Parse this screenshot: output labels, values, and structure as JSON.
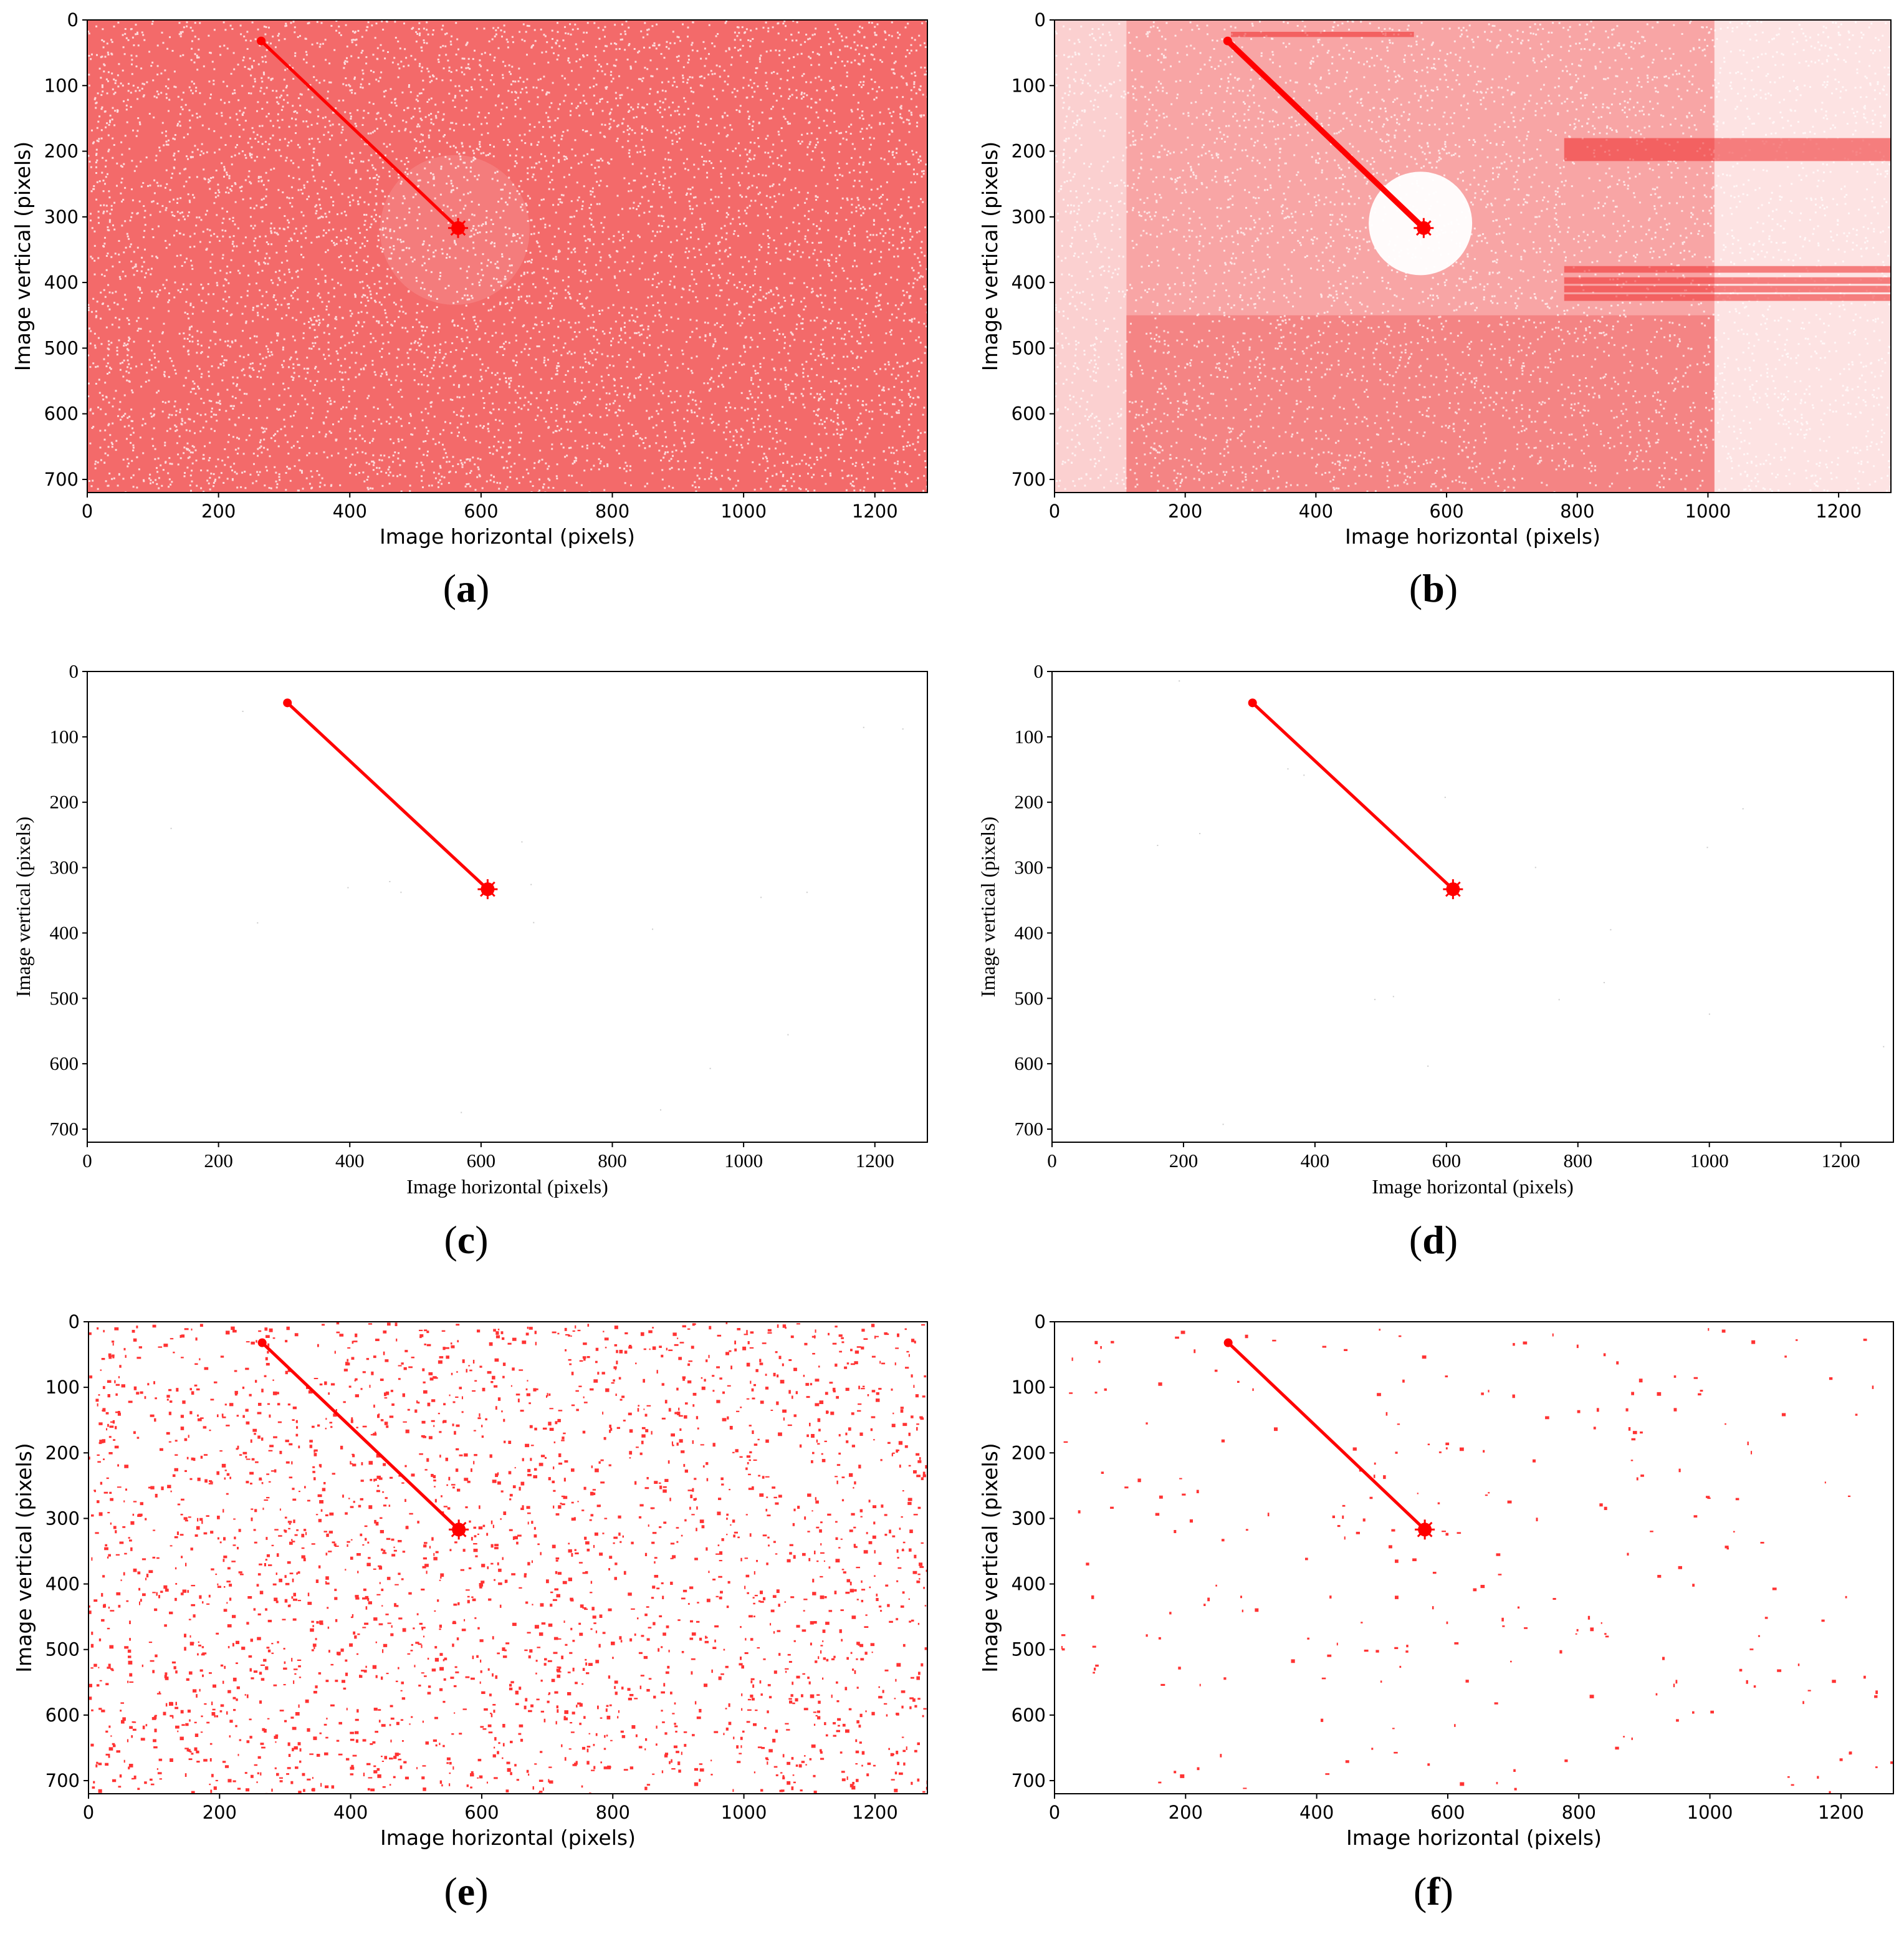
{
  "colors": {
    "accent": "#ff0000",
    "background": "#ffffff",
    "axis": "#000000"
  },
  "chart_data": [
    {
      "id": "a",
      "caption_open": "(",
      "caption_letter": "a",
      "caption_close": ")",
      "type": "scatter",
      "xlabel": "Image horizontal (pixels)",
      "ylabel": "Image vertical (pixels)",
      "xlim": [
        0,
        1280
      ],
      "ylim": [
        720,
        0
      ],
      "xticks": [
        "0",
        "200",
        "400",
        "600",
        "800",
        "1000",
        "1200"
      ],
      "yticks": [
        "0",
        "100",
        "200",
        "300",
        "400",
        "500",
        "600",
        "700"
      ],
      "grid": false,
      "font": "sans",
      "noise": "dense",
      "line": {
        "x": [
          265,
          565
        ],
        "y": [
          32,
          317
        ]
      }
    },
    {
      "id": "b",
      "caption_open": "(",
      "caption_letter": "b",
      "caption_close": ")",
      "type": "scatter",
      "xlabel": "Image horizontal (pixels)",
      "ylabel": "Image vertical (pixels)",
      "xlim": [
        0,
        1280
      ],
      "ylim": [
        720,
        0
      ],
      "xticks": [
        "0",
        "200",
        "400",
        "600",
        "800",
        "1000",
        "1200"
      ],
      "yticks": [
        "0",
        "100",
        "200",
        "300",
        "400",
        "500",
        "600",
        "700"
      ],
      "grid": false,
      "font": "sans",
      "noise": "structured",
      "line": {
        "x": [
          265,
          565
        ],
        "y": [
          32,
          317
        ]
      }
    },
    {
      "id": "c",
      "caption_open": "(",
      "caption_letter": "c",
      "caption_close": ")",
      "type": "scatter",
      "xlabel": "Image horizontal (pixels)",
      "ylabel": "Image vertical (pixels)",
      "xlim": [
        0,
        1280
      ],
      "ylim": [
        720,
        0
      ],
      "xticks": [
        "0",
        "200",
        "400",
        "600",
        "800",
        "1000",
        "1200"
      ],
      "yticks": [
        "0",
        "100",
        "200",
        "300",
        "400",
        "500",
        "600",
        "700"
      ],
      "grid": false,
      "font": "serif",
      "noise": "none",
      "line": {
        "x": [
          305,
          610
        ],
        "y": [
          48,
          333
        ]
      }
    },
    {
      "id": "d",
      "caption_open": "(",
      "caption_letter": "d",
      "caption_close": ")",
      "type": "scatter",
      "xlabel": "Image horizontal (pixels)",
      "ylabel": "Image vertical (pixels)",
      "xlim": [
        0,
        1280
      ],
      "ylim": [
        720,
        0
      ],
      "xticks": [
        "0",
        "200",
        "400",
        "600",
        "800",
        "1000",
        "1200"
      ],
      "yticks": [
        "0",
        "100",
        "200",
        "300",
        "400",
        "500",
        "600",
        "700"
      ],
      "grid": false,
      "font": "serif",
      "noise": "none",
      "line": {
        "x": [
          305,
          610
        ],
        "y": [
          48,
          333
        ]
      }
    },
    {
      "id": "e",
      "caption_open": "(",
      "caption_letter": "e",
      "caption_close": ")",
      "type": "scatter",
      "xlabel": "Image horizontal (pixels)",
      "ylabel": "Image vertical (pixels)",
      "xlim": [
        0,
        1280
      ],
      "ylim": [
        720,
        0
      ],
      "xticks": [
        "0",
        "200",
        "400",
        "600",
        "800",
        "1000",
        "1200"
      ],
      "yticks": [
        "0",
        "100",
        "200",
        "300",
        "400",
        "500",
        "600",
        "700"
      ],
      "grid": false,
      "font": "sans",
      "noise": "speckle",
      "line": {
        "x": [
          265,
          565
        ],
        "y": [
          32,
          317
        ]
      }
    },
    {
      "id": "f",
      "caption_open": "(",
      "caption_letter": "f",
      "caption_close": ")",
      "type": "scatter",
      "xlabel": "Image horizontal (pixels)",
      "ylabel": "Image vertical (pixels)",
      "xlim": [
        0,
        1280
      ],
      "ylim": [
        720,
        0
      ],
      "xticks": [
        "0",
        "200",
        "400",
        "600",
        "800",
        "1000",
        "1200"
      ],
      "yticks": [
        "0",
        "100",
        "200",
        "300",
        "400",
        "500",
        "600",
        "700"
      ],
      "grid": false,
      "font": "sans",
      "noise": "sparse",
      "line": {
        "x": [
          265,
          565
        ],
        "y": [
          32,
          317
        ]
      }
    }
  ]
}
